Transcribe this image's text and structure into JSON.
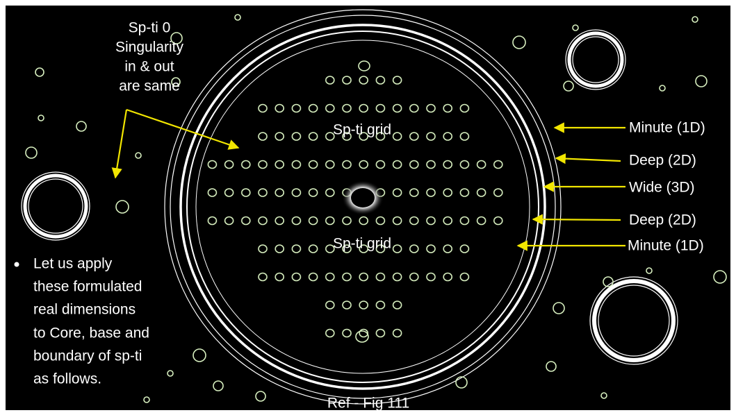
{
  "note": [
    "Sp-ti 0",
    "Singularity",
    "in & out",
    "are same"
  ],
  "grid_labels": [
    "Sp-ti grid",
    "Sp-ti grid"
  ],
  "dimension_labels": [
    "Minute (1D)",
    "Deep (2D)",
    "Wide (3D)",
    "Deep (2D)",
    "Minute (1D)"
  ],
  "bullet": [
    "Let us apply",
    "these formulated",
    "real dimensions",
    "to Core, base and",
    "boundary of sp-ti",
    "as follows."
  ],
  "reference": "Ref - Fig 111"
}
